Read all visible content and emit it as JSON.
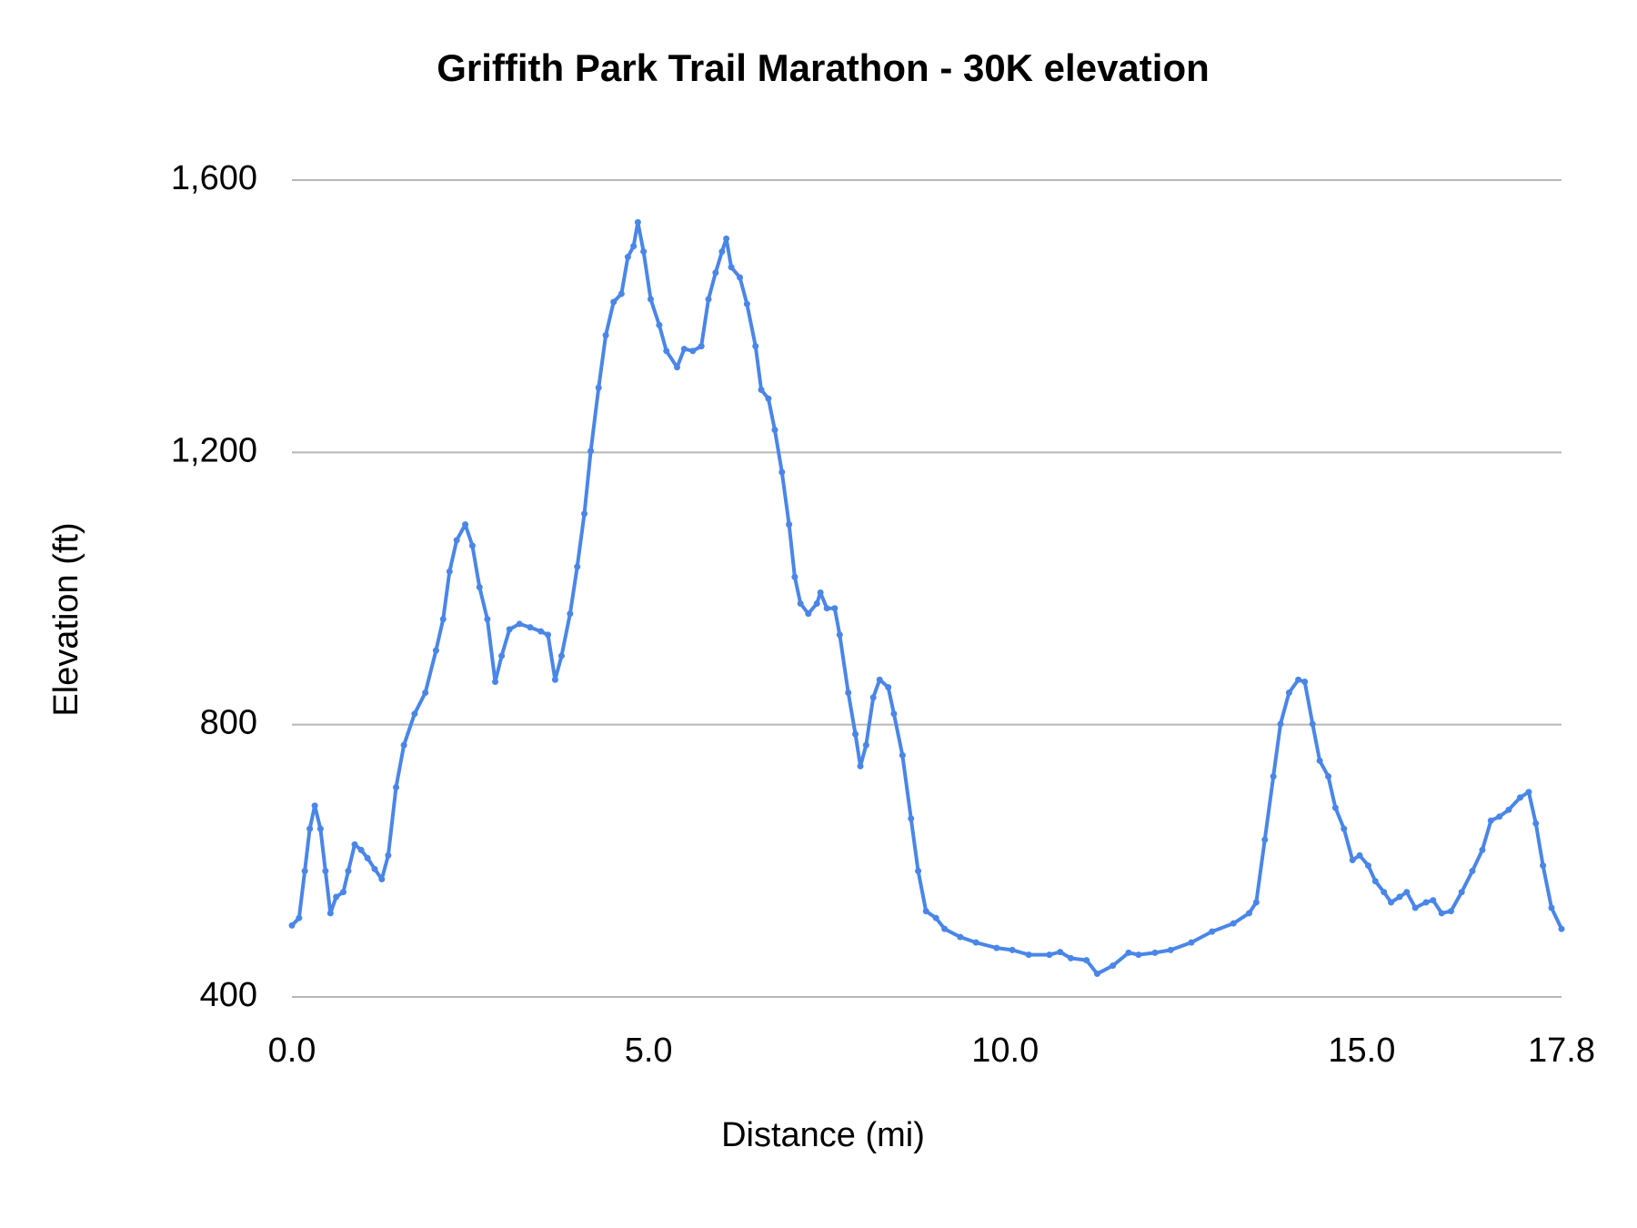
{
  "chart_data": {
    "type": "line",
    "title": "Griffith Park Trail Marathon - 30K elevation",
    "xlabel": "Distance (mi)",
    "ylabel": "Elevation (ft)",
    "x": [
      0,
      0.1,
      0.18,
      0.25,
      0.32,
      0.4,
      0.47,
      0.54,
      0.62,
      0.72,
      0.79,
      0.88,
      0.97,
      1.06,
      1.16,
      1.26,
      1.35,
      1.46,
      1.57,
      1.72,
      1.87,
      2.02,
      2.12,
      2.21,
      2.31,
      2.43,
      2.53,
      2.63,
      2.74,
      2.85,
      2.94,
      3.05,
      3.19,
      3.34,
      3.49,
      3.59,
      3.69,
      3.78,
      3.9,
      4.0,
      4.1,
      4.19,
      4.3,
      4.4,
      4.51,
      4.62,
      4.71,
      4.79,
      4.85,
      4.93,
      5.03,
      5.15,
      5.25,
      5.4,
      5.5,
      5.62,
      5.74,
      5.84,
      5.94,
      6.03,
      6.09,
      6.16,
      6.28,
      6.38,
      6.5,
      6.58,
      6.68,
      6.77,
      6.87,
      6.97,
      7.05,
      7.13,
      7.24,
      7.36,
      7.41,
      7.5,
      7.61,
      7.68,
      7.8,
      7.9,
      7.97,
      8.05,
      8.15,
      8.24,
      8.36,
      8.44,
      8.56,
      8.68,
      8.78,
      8.89,
      9.03,
      9.15,
      9.37,
      9.59,
      9.88,
      10.1,
      10.33,
      10.62,
      10.77,
      10.92,
      11.14,
      11.29,
      11.51,
      11.73,
      11.87,
      12.1,
      12.32,
      12.61,
      12.9,
      13.2,
      13.42,
      13.52,
      13.64,
      13.76,
      13.86,
      13.98,
      14.11,
      14.2,
      14.31,
      14.41,
      14.53,
      14.63,
      14.75,
      14.87,
      14.97,
      15.09,
      15.19,
      15.31,
      15.41,
      15.53,
      15.63,
      15.75,
      15.9,
      16.0,
      16.12,
      16.25,
      16.4,
      16.55,
      16.69,
      16.81,
      16.93,
      17.06,
      17.22,
      17.34,
      17.44,
      17.54,
      17.66,
      17.8
    ],
    "series": [
      {
        "name": "Elevation",
        "color": "#4a86e8",
        "values": [
          505,
          516,
          585,
          647,
          681,
          647,
          585,
          523,
          547,
          554,
          585,
          624,
          616,
          604,
          588,
          573,
          608,
          708,
          770,
          816,
          847,
          909,
          955,
          1025,
          1071,
          1094,
          1063,
          1002,
          955,
          863,
          901,
          940,
          948,
          943,
          937,
          932,
          866,
          901,
          963,
          1032,
          1110,
          1202,
          1295,
          1372,
          1421,
          1433,
          1487,
          1503,
          1538,
          1495,
          1425,
          1387,
          1349,
          1325,
          1352,
          1349,
          1356,
          1425,
          1464,
          1495,
          1514,
          1472,
          1457,
          1418,
          1356,
          1292,
          1279,
          1233,
          1171,
          1094,
          1017,
          978,
          963,
          978,
          994,
          971,
          971,
          932,
          847,
          786,
          739,
          770,
          840,
          866,
          855,
          816,
          755,
          662,
          585,
          526,
          516,
          500,
          488,
          480,
          472,
          469,
          462,
          462,
          466,
          457,
          454,
          434,
          446,
          465,
          462,
          465,
          469,
          480,
          496,
          508,
          523,
          539,
          631,
          724,
          801,
          847,
          866,
          863,
          801,
          747,
          724,
          678,
          647,
          601,
          608,
          593,
          570,
          554,
          539,
          547,
          554,
          531,
          539,
          542,
          523,
          526,
          554,
          585,
          616,
          659,
          665,
          675,
          693,
          701,
          655,
          593,
          531,
          500
        ]
      }
    ],
    "xlim": [
      0,
      17.8
    ],
    "ylim": [
      400,
      1600
    ],
    "xticks": [
      {
        "value": 0,
        "label": "0.0"
      },
      {
        "value": 5,
        "label": "5.0"
      },
      {
        "value": 10,
        "label": "10.0"
      },
      {
        "value": 15,
        "label": "15.0"
      },
      17.8
    ],
    "yticks": [
      400,
      800,
      {
        "value": 1200,
        "label": "1,200"
      },
      {
        "value": 1600,
        "label": "1,600"
      }
    ],
    "grid": true
  }
}
